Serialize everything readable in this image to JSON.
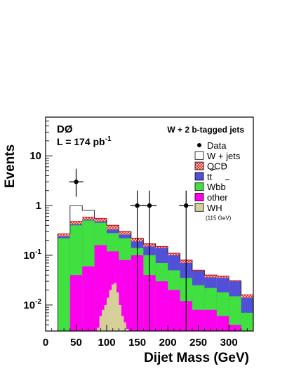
{
  "chart_data": {
    "type": "bar",
    "stacked": true,
    "log_scale_y": true,
    "experiment": "DØ",
    "luminosity_prefix": "L = 174 pb",
    "luminosity_exponent": "-1",
    "title": "W + 2 b-tagged jets",
    "xlabel": "Dijet Mass (GeV)",
    "ylabel": "Events",
    "xlim": [
      0,
      340
    ],
    "ylim": [
      0.003,
      60
    ],
    "xticks": [
      0,
      50,
      100,
      150,
      200,
      250,
      300
    ],
    "yticks": [
      {
        "value": 0.01,
        "base": "10",
        "exp": "-2"
      },
      {
        "value": 0.1,
        "base": "10",
        "exp": "-1"
      },
      {
        "value": 1,
        "base": "1",
        "exp": ""
      },
      {
        "value": 10,
        "base": "10",
        "exp": ""
      }
    ],
    "bin_edges": [
      20,
      40,
      60,
      80,
      100,
      120,
      140,
      160,
      180,
      200,
      220,
      240,
      260,
      280,
      300,
      320,
      340
    ],
    "stack_tops": {
      "other": [
        0.0029,
        0.04,
        0.06,
        0.16,
        0.12,
        0.08,
        0.1,
        0.04,
        0.03,
        0.02,
        0.012,
        0.008,
        0.008,
        0.006,
        0.004,
        0.0029
      ],
      "wbb": [
        0.22,
        0.4,
        0.5,
        0.45,
        0.28,
        0.22,
        0.14,
        0.1,
        0.07,
        0.05,
        0.035,
        0.025,
        0.022,
        0.018,
        0.015,
        0.007
      ],
      "ttbar": [
        0.24,
        0.42,
        0.52,
        0.48,
        0.33,
        0.26,
        0.19,
        0.15,
        0.14,
        0.1,
        0.07,
        0.05,
        0.036,
        0.035,
        0.03,
        0.014
      ],
      "qcd": [
        0.27,
        0.48,
        0.58,
        0.55,
        0.4,
        0.3,
        0.22,
        0.17,
        0.15,
        0.11,
        0.08,
        0.05,
        0.04,
        0.038,
        0.031,
        0.016
      ],
      "wjets": [
        0.27,
        1.0,
        0.8,
        0.55,
        0.4,
        0.3,
        0.22,
        0.17,
        0.15,
        0.11,
        0.08,
        0.05,
        0.04,
        0.038,
        0.031,
        0.016
      ]
    },
    "wh_signal": {
      "x": [
        84,
        88,
        92,
        96,
        100,
        104,
        108,
        112,
        116,
        120,
        124,
        128,
        132
      ],
      "y": [
        0.0035,
        0.006,
        0.008,
        0.01,
        0.014,
        0.02,
        0.026,
        0.028,
        0.018,
        0.01,
        0.006,
        0.0045,
        0.0033
      ]
    },
    "data_points": [
      {
        "x": 50,
        "y": 3.0,
        "err_low": 1.5,
        "err_high": 5.5
      },
      {
        "x": 150,
        "y": 1.0,
        "err_low": 0.003,
        "err_high": 2.0
      },
      {
        "x": 170,
        "y": 1.0,
        "err_low": 0.003,
        "err_high": 2.0
      },
      {
        "x": 230,
        "y": 1.0,
        "err_low": 0.003,
        "err_high": 2.0
      }
    ],
    "legend": {
      "placement": "top-right",
      "items": [
        {
          "key": "data",
          "label": "Data",
          "style": "marker"
        },
        {
          "key": "wjets",
          "label": "W + jets",
          "color": "#ffffff"
        },
        {
          "key": "qcd",
          "label": "QCD",
          "color": "#f5b8a6",
          "hatch": "#e02020"
        },
        {
          "key": "ttbar",
          "label": "tt",
          "color": "#5050d8"
        },
        {
          "key": "wbb",
          "label": "Wbb",
          "color": "#40e040"
        },
        {
          "key": "other",
          "label": "other",
          "color": "#ff00ee"
        },
        {
          "key": "wh",
          "label": "WH",
          "color": "#d6d09a"
        }
      ],
      "wh_note": "(115 GeV)"
    }
  }
}
